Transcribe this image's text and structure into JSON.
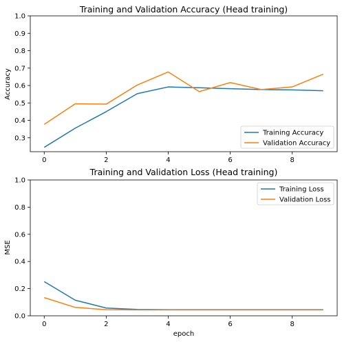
{
  "chart_data": [
    {
      "type": "line",
      "title": "Training and Validation Accuracy (Head training)",
      "xlabel": "",
      "ylabel": "Accuracy",
      "xlim": [
        -0.45,
        9.45
      ],
      "ylim": [
        0.22,
        1.0
      ],
      "xticks": [
        0,
        2,
        4,
        6,
        8
      ],
      "yticks": [
        0.3,
        0.4,
        0.5,
        0.6,
        0.7,
        0.8,
        0.9,
        1.0
      ],
      "ytick_labels": [
        "0.3",
        "0.4",
        "0.5",
        "0.6",
        "0.7",
        "0.8",
        "0.9",
        "1.0"
      ],
      "grid": false,
      "legend_position": "lower right",
      "x": [
        0,
        1,
        2,
        3,
        4,
        5,
        6,
        7,
        8,
        9
      ],
      "series": [
        {
          "name": "Training Accuracy",
          "color": "#1f77b4",
          "values": [
            0.245,
            0.355,
            0.45,
            0.553,
            0.592,
            0.587,
            0.582,
            0.577,
            0.575,
            0.57
          ]
        },
        {
          "name": "Validation Accuracy",
          "color": "#ff7f0e",
          "values": [
            0.377,
            0.495,
            0.493,
            0.603,
            0.678,
            0.565,
            0.617,
            0.577,
            0.592,
            0.665
          ]
        }
      ]
    },
    {
      "type": "line",
      "title": "Training and Validation Loss (Head training)",
      "xlabel": "epoch",
      "ylabel": "MSE",
      "xlim": [
        -0.45,
        9.45
      ],
      "ylim": [
        0.0,
        1.0
      ],
      "xticks": [
        0,
        2,
        4,
        6,
        8
      ],
      "yticks": [
        0.0,
        0.2,
        0.4,
        0.6,
        0.8,
        1.0
      ],
      "ytick_labels": [
        "0.0",
        "0.2",
        "0.4",
        "0.6",
        "0.8",
        "1.0"
      ],
      "grid": false,
      "legend_position": "upper right",
      "x": [
        0,
        1,
        2,
        3,
        4,
        5,
        6,
        7,
        8,
        9
      ],
      "series": [
        {
          "name": "Training Loss",
          "color": "#1f77b4",
          "values": [
            0.252,
            0.115,
            0.057,
            0.047,
            0.045,
            0.045,
            0.045,
            0.045,
            0.045,
            0.045
          ]
        },
        {
          "name": "Validation Loss",
          "color": "#ff7f0e",
          "values": [
            0.134,
            0.062,
            0.045,
            0.043,
            0.043,
            0.043,
            0.043,
            0.043,
            0.043,
            0.043
          ]
        }
      ]
    }
  ]
}
